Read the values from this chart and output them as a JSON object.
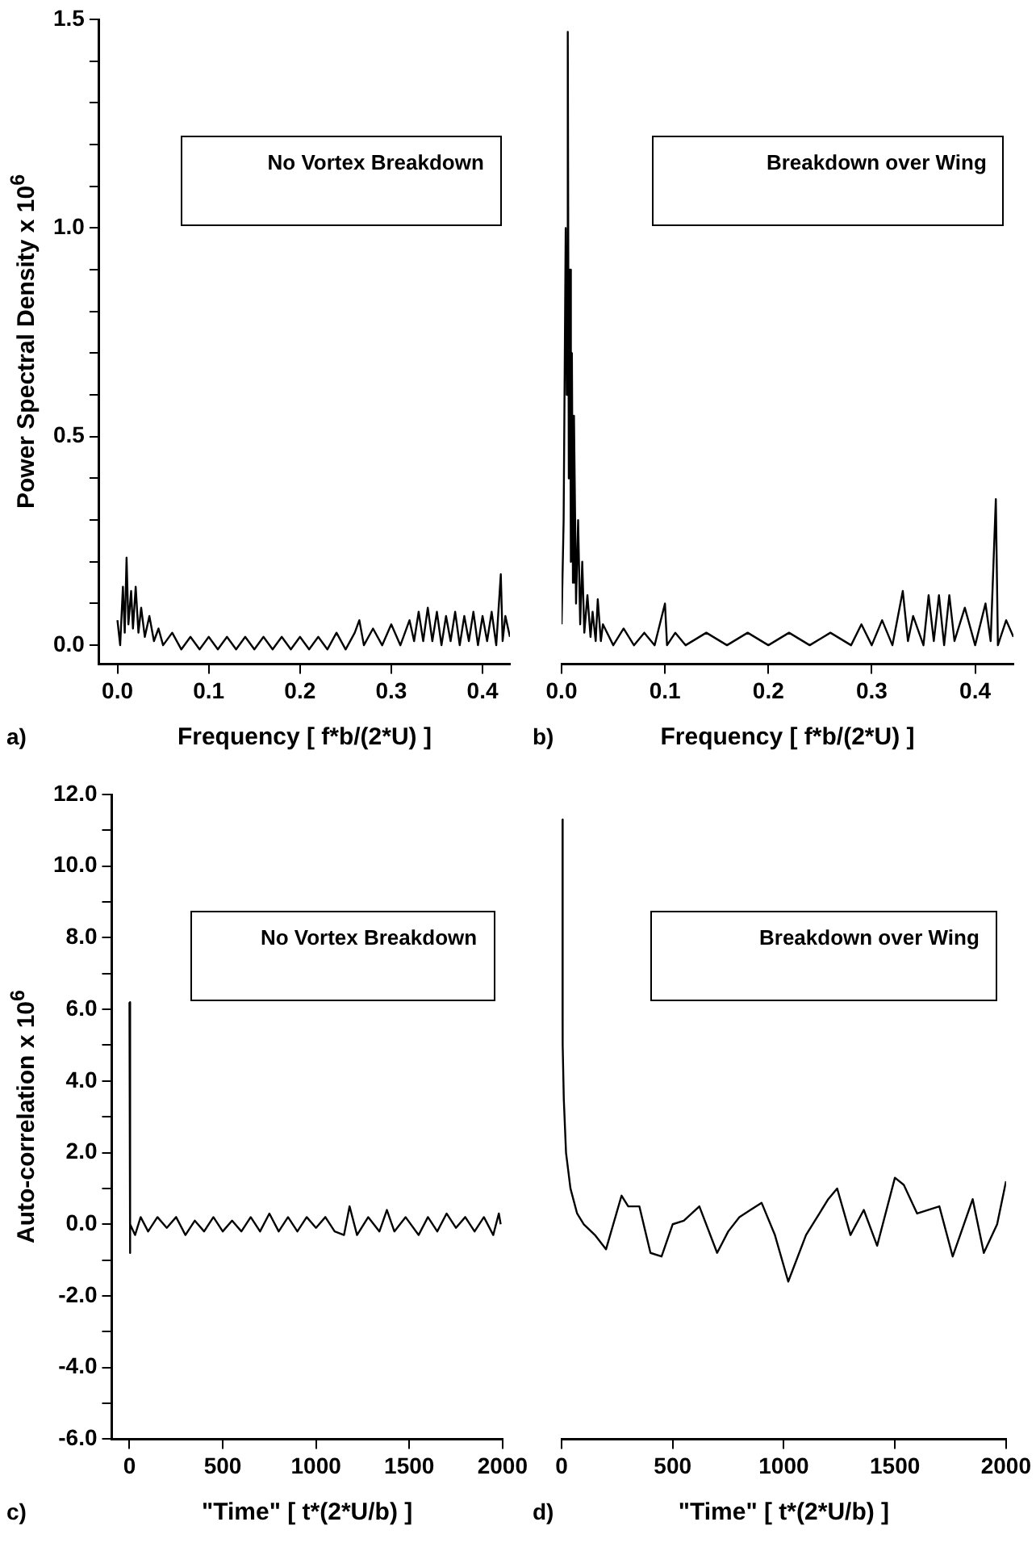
{
  "chart_data": [
    {
      "type": "line",
      "xlabel": "Frequency  [ f*b/(2*U) ]",
      "ylabel": "Power Spectral Density x 10$^{6}$",
      "annotations": [
        "No Vortex Breakdown",
        "a)"
      ],
      "xlim": [
        -0.02,
        0.43
      ],
      "xticks": [
        {
          "value": 0,
          "label": "0.0"
        },
        {
          "value": 0.1,
          "label": "0.1"
        },
        {
          "value": 0.2,
          "label": "0.2"
        },
        {
          "value": 0.3,
          "label": "0.3"
        },
        {
          "value": 0.4,
          "label": "0.4"
        }
      ],
      "ylim": [
        -0.045,
        1.5
      ],
      "yticks": [
        {
          "value": 0,
          "label": "0.0"
        },
        {
          "value": 0.1,
          "label": null
        },
        {
          "value": 0.2,
          "label": null
        },
        {
          "value": 0.3,
          "label": null
        },
        {
          "value": 0.4,
          "label": null
        },
        {
          "value": 0.5,
          "label": "0.5"
        },
        {
          "value": 0.6,
          "label": null
        },
        {
          "value": 0.7,
          "label": null
        },
        {
          "value": 0.8,
          "label": null
        },
        {
          "value": 0.9,
          "label": null
        },
        {
          "value": 1.0,
          "label": "1.0"
        },
        {
          "value": 1.1,
          "label": null
        },
        {
          "value": 1.2,
          "label": null
        },
        {
          "value": 1.3,
          "label": null
        },
        {
          "value": 1.4,
          "label": null
        },
        {
          "value": 1.5,
          "label": "1.5"
        }
      ],
      "series": [
        {
          "color": "#000000",
          "x": [
            0.0,
            0.003,
            0.006,
            0.008,
            0.01,
            0.012,
            0.015,
            0.017,
            0.02,
            0.023,
            0.026,
            0.03,
            0.035,
            0.04,
            0.045,
            0.05,
            0.06,
            0.07,
            0.08,
            0.09,
            0.1,
            0.11,
            0.12,
            0.13,
            0.14,
            0.15,
            0.16,
            0.17,
            0.18,
            0.19,
            0.2,
            0.21,
            0.22,
            0.23,
            0.24,
            0.25,
            0.26,
            0.265,
            0.27,
            0.28,
            0.29,
            0.3,
            0.31,
            0.32,
            0.325,
            0.33,
            0.335,
            0.34,
            0.345,
            0.35,
            0.355,
            0.36,
            0.365,
            0.37,
            0.375,
            0.38,
            0.385,
            0.39,
            0.395,
            0.4,
            0.405,
            0.41,
            0.415,
            0.42,
            0.422,
            0.425,
            0.43
          ],
          "values": [
            0.06,
            0.0,
            0.14,
            0.03,
            0.21,
            0.05,
            0.13,
            0.04,
            0.14,
            0.03,
            0.09,
            0.02,
            0.07,
            0.01,
            0.04,
            0.0,
            0.03,
            -0.01,
            0.02,
            -0.01,
            0.02,
            -0.01,
            0.02,
            -0.01,
            0.02,
            -0.01,
            0.02,
            -0.01,
            0.02,
            -0.01,
            0.02,
            -0.01,
            0.02,
            -0.01,
            0.03,
            -0.01,
            0.03,
            0.06,
            0.0,
            0.04,
            0.0,
            0.05,
            0.0,
            0.06,
            0.01,
            0.08,
            0.01,
            0.09,
            0.01,
            0.08,
            0.0,
            0.07,
            0.01,
            0.08,
            0.0,
            0.07,
            0.01,
            0.08,
            0.0,
            0.07,
            0.01,
            0.08,
            0.0,
            0.17,
            0.01,
            0.07,
            0.02
          ]
        }
      ]
    },
    {
      "type": "line",
      "xlabel": "Frequency  [ f*b/(2*U) ]",
      "annotations": [
        "Breakdown over Wing",
        "b)"
      ],
      "tick_labels": "x",
      "xlim": [
        0,
        0.437
      ],
      "xticks": [
        {
          "value": 0,
          "label": "0.0"
        },
        {
          "value": 0.1,
          "label": "0.1"
        },
        {
          "value": 0.2,
          "label": "0.2"
        },
        {
          "value": 0.3,
          "label": "0.3"
        },
        {
          "value": 0.4,
          "label": "0.4"
        }
      ],
      "ylim": [
        -0.045,
        1.5
      ],
      "series": [
        {
          "color": "#000000",
          "x": [
            0.0,
            0.002,
            0.004,
            0.005,
            0.006,
            0.007,
            0.008,
            0.009,
            0.01,
            0.011,
            0.012,
            0.014,
            0.016,
            0.018,
            0.02,
            0.022,
            0.025,
            0.028,
            0.03,
            0.033,
            0.035,
            0.038,
            0.04,
            0.05,
            0.06,
            0.07,
            0.08,
            0.09,
            0.1,
            0.102,
            0.11,
            0.12,
            0.14,
            0.16,
            0.18,
            0.2,
            0.22,
            0.24,
            0.26,
            0.28,
            0.29,
            0.3,
            0.31,
            0.32,
            0.33,
            0.335,
            0.34,
            0.35,
            0.355,
            0.36,
            0.365,
            0.37,
            0.375,
            0.38,
            0.39,
            0.4,
            0.41,
            0.415,
            0.42,
            0.422,
            0.43,
            0.437
          ],
          "values": [
            0.05,
            0.3,
            1.0,
            0.6,
            1.47,
            0.4,
            0.9,
            0.2,
            0.7,
            0.15,
            0.55,
            0.1,
            0.3,
            0.05,
            0.2,
            0.03,
            0.12,
            0.02,
            0.08,
            0.01,
            0.11,
            0.01,
            0.05,
            0.0,
            0.04,
            0.0,
            0.03,
            0.0,
            0.1,
            0.0,
            0.03,
            0.0,
            0.03,
            0.0,
            0.03,
            0.0,
            0.03,
            0.0,
            0.03,
            0.0,
            0.05,
            0.0,
            0.06,
            0.0,
            0.13,
            0.01,
            0.07,
            0.0,
            0.12,
            0.01,
            0.12,
            0.0,
            0.12,
            0.01,
            0.09,
            0.0,
            0.1,
            0.01,
            0.35,
            0.0,
            0.06,
            0.02
          ]
        }
      ]
    },
    {
      "type": "line",
      "xlabel": "\"Time\"  [ t*(2*U/b) ]",
      "ylabel": "Auto-correlation x 10$^{6}$",
      "annotations": [
        "No Vortex Breakdown",
        "c)"
      ],
      "xlim": [
        -95,
        2000
      ],
      "xticks": [
        0,
        500,
        1000,
        1500,
        2000
      ],
      "ylim": [
        -6,
        12
      ],
      "yticks": [
        {
          "value": -6,
          "label": "-6.0"
        },
        {
          "value": -5,
          "label": null
        },
        {
          "value": -4,
          "label": "-4.0"
        },
        {
          "value": -3,
          "label": null
        },
        {
          "value": -2,
          "label": "-2.0"
        },
        {
          "value": -1,
          "label": null
        },
        {
          "value": 0,
          "label": "0.0"
        },
        {
          "value": 1,
          "label": null
        },
        {
          "value": 2,
          "label": "2.0"
        },
        {
          "value": 3,
          "label": null
        },
        {
          "value": 4,
          "label": "4.0"
        },
        {
          "value": 5,
          "label": null
        },
        {
          "value": 6,
          "label": "6.0"
        },
        {
          "value": 7,
          "label": null
        },
        {
          "value": 8,
          "label": "8.0"
        },
        {
          "value": 9,
          "label": null
        },
        {
          "value": 10,
          "label": "10.0"
        },
        {
          "value": 11,
          "label": null
        },
        {
          "value": 12,
          "label": "12.0"
        }
      ],
      "series": [
        {
          "color": "#000000",
          "x": [
            0,
            2,
            5,
            30,
            60,
            100,
            150,
            200,
            250,
            300,
            350,
            400,
            450,
            500,
            550,
            600,
            650,
            700,
            750,
            800,
            850,
            900,
            950,
            1000,
            1050,
            1100,
            1150,
            1180,
            1220,
            1280,
            1340,
            1380,
            1420,
            1480,
            1550,
            1600,
            1650,
            1700,
            1750,
            1800,
            1850,
            1900,
            1950,
            1980,
            1990
          ],
          "values": [
            6.2,
            -0.8,
            0.0,
            -0.3,
            0.2,
            -0.2,
            0.2,
            -0.1,
            0.2,
            -0.3,
            0.1,
            -0.2,
            0.2,
            -0.2,
            0.1,
            -0.2,
            0.2,
            -0.2,
            0.3,
            -0.2,
            0.2,
            -0.2,
            0.2,
            -0.1,
            0.2,
            -0.2,
            -0.3,
            0.5,
            -0.3,
            0.2,
            -0.2,
            0.4,
            -0.2,
            0.2,
            -0.3,
            0.2,
            -0.2,
            0.3,
            -0.1,
            0.2,
            -0.2,
            0.2,
            -0.3,
            0.3,
            0.0
          ]
        }
      ]
    },
    {
      "type": "line",
      "xlabel": "\"Time\"  [ t*(2*U/b) ]",
      "annotations": [
        "Breakdown over Wing",
        "d)"
      ],
      "tick_labels": "x",
      "xlim": [
        0,
        2000
      ],
      "xticks": [
        0,
        500,
        1000,
        1500,
        2000
      ],
      "ylim": [
        -6,
        12
      ],
      "series": [
        {
          "color": "#000000",
          "x": [
            0,
            5,
            10,
            20,
            40,
            70,
            100,
            150,
            200,
            270,
            300,
            350,
            400,
            450,
            500,
            550,
            620,
            700,
            750,
            800,
            850,
            900,
            960,
            1020,
            1100,
            1200,
            1240,
            1300,
            1360,
            1420,
            1500,
            1540,
            1600,
            1700,
            1760,
            1850,
            1900,
            1960,
            2000
          ],
          "values": [
            11.3,
            5,
            3.5,
            2,
            1.0,
            0.3,
            0.0,
            -0.3,
            -0.7,
            0.8,
            0.5,
            0.5,
            -0.8,
            -0.9,
            0.0,
            0.1,
            0.5,
            -0.8,
            -0.2,
            0.2,
            0.4,
            0.6,
            -0.3,
            -1.6,
            -0.3,
            0.7,
            1.0,
            -0.3,
            0.4,
            -0.6,
            1.3,
            1.1,
            0.3,
            0.5,
            -0.9,
            0.7,
            -0.8,
            0.0,
            1.2
          ]
        }
      ]
    }
  ]
}
